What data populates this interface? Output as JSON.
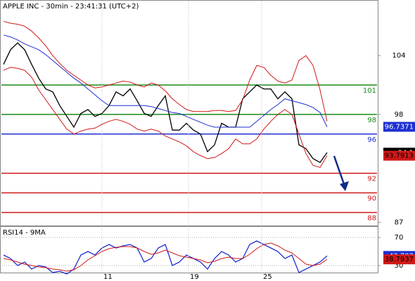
{
  "chart_data": [
    {
      "type": "line",
      "title": "APPLE INC - 30min - 23:41:31 (UTC+2)",
      "x": [
        0,
        1,
        2,
        3,
        4,
        5,
        6,
        7,
        8,
        9,
        10,
        11,
        12,
        13,
        14,
        15,
        16,
        17,
        18,
        19,
        20,
        21,
        22,
        23,
        24,
        25,
        26,
        27,
        28,
        29,
        30,
        31,
        32,
        33,
        34,
        35,
        36,
        37,
        38,
        39,
        40,
        41,
        42,
        43,
        44,
        45,
        46
      ],
      "xlim": [
        -0.5,
        53.2
      ],
      "ylim": [
        86.6,
        109.6
      ],
      "yticks": [
        104,
        98,
        87
      ],
      "series": [
        {
          "color": "#000000",
          "values": [
            103.1,
            104.6,
            105.3,
            104.6,
            103.1,
            101.7,
            100.6,
            100.3,
            98.9,
            97.8,
            96.7,
            98.1,
            98.5,
            97.8,
            98.1,
            98.9,
            100.3,
            99.9,
            100.6,
            99.4,
            98.1,
            97.8,
            98.9,
            99.9,
            96.4,
            96.4,
            97.1,
            96.4,
            96.0,
            94.2,
            94.9,
            97.1,
            96.7,
            96.7,
            99.6,
            100.3,
            101.0,
            100.6,
            100.6,
            99.6,
            100.3,
            99.6,
            94.9,
            94.5,
            93.5,
            93.1,
            94.1
          ]
        },
        {
          "color": "#1f2fd0",
          "values": [
            106.1,
            105.9,
            105.6,
            105.2,
            104.9,
            104.6,
            104.1,
            103.5,
            102.9,
            102.3,
            101.7,
            101.2,
            100.6,
            100.0,
            99.4,
            98.9,
            98.9,
            98.9,
            98.9,
            98.9,
            98.9,
            98.8,
            98.6,
            98.4,
            98.2,
            98.1,
            97.8,
            97.5,
            97.2,
            96.9,
            96.7,
            96.7,
            96.7,
            96.7,
            96.7,
            96.7,
            97.3,
            97.9,
            98.5,
            99.0,
            99.6,
            99.4,
            99.2,
            99.0,
            98.7,
            98.2,
            96.7371
          ]
        },
        {
          "color": "#d01818",
          "values": [
            107.5,
            107.3,
            107.2,
            107.0,
            106.5,
            105.8,
            105.0,
            104.0,
            103.2,
            102.5,
            102.0,
            101.5,
            101.0,
            100.7,
            100.8,
            101.0,
            101.2,
            101.4,
            101.3,
            101.0,
            100.8,
            101.2,
            101.0,
            100.4,
            99.6,
            99.0,
            98.5,
            98.3,
            98.3,
            98.3,
            98.4,
            98.4,
            98.3,
            98.4,
            99.5,
            101.5,
            103.0,
            102.8,
            102.0,
            101.4,
            101.2,
            101.5,
            103.5,
            104.0,
            103.0,
            100.5,
            97.3
          ]
        },
        {
          "color": "#d01818",
          "values": [
            102.5,
            102.8,
            102.7,
            102.5,
            101.8,
            100.5,
            99.5,
            98.5,
            97.5,
            96.5,
            96.0,
            96.3,
            96.5,
            96.6,
            97.0,
            97.3,
            97.5,
            97.3,
            97.0,
            96.5,
            96.3,
            96.5,
            96.3,
            95.8,
            95.5,
            95.2,
            94.8,
            94.2,
            93.8,
            93.5,
            93.6,
            94.0,
            94.5,
            95.5,
            95.0,
            95.0,
            95.5,
            96.5,
            97.3,
            98.0,
            98.5,
            98.0,
            96.0,
            94.0,
            92.8,
            92.6,
            93.7913
          ]
        }
      ],
      "levels": [
        {
          "value": 101,
          "color": "#1a8a1a"
        },
        {
          "value": 98,
          "color": "#1a8a1a"
        },
        {
          "value": 96,
          "color": "#1f2fd0"
        },
        {
          "value": 92,
          "color": "#d01818"
        },
        {
          "value": 90,
          "color": "#d01818"
        },
        {
          "value": 88,
          "color": "#d01818"
        }
      ]
    },
    {
      "type": "line",
      "title": "RSI14 - 9MA",
      "x": [
        0,
        1,
        2,
        3,
        4,
        5,
        6,
        7,
        8,
        9,
        10,
        11,
        12,
        13,
        14,
        15,
        16,
        17,
        18,
        19,
        20,
        21,
        22,
        23,
        24,
        25,
        26,
        27,
        28,
        29,
        30,
        31,
        32,
        33,
        34,
        35,
        36,
        37,
        38,
        39,
        40,
        41,
        42,
        43,
        44,
        45,
        46
      ],
      "xlim": [
        -0.5,
        53.2
      ],
      "ylim": [
        10,
        86
      ],
      "yticks": [
        70,
        30
      ],
      "xticks": [
        {
          "value": 14,
          "label": "11"
        },
        {
          "value": 26.3,
          "label": "19"
        },
        {
          "value": 36.7,
          "label": "25"
        }
      ],
      "series": [
        {
          "color": "#1f2fd0",
          "values": [
            45,
            40,
            30,
            35,
            25,
            30,
            28,
            20,
            22,
            18,
            25,
            45,
            50,
            45,
            55,
            60,
            55,
            58,
            60,
            55,
            35,
            40,
            55,
            60,
            30,
            35,
            45,
            40,
            35,
            25,
            40,
            50,
            45,
            35,
            40,
            60,
            65,
            60,
            55,
            50,
            40,
            45,
            20,
            25,
            30,
            35,
            43.703
          ]
        },
        {
          "color": "#d01818",
          "values": [
            40,
            38,
            35,
            32,
            30,
            28,
            27,
            25,
            24,
            22,
            24,
            30,
            38,
            44,
            50,
            54,
            56,
            57,
            57,
            55,
            50,
            46,
            48,
            52,
            48,
            44,
            42,
            40,
            38,
            34,
            36,
            40,
            42,
            40,
            40,
            46,
            54,
            60,
            62,
            58,
            52,
            48,
            40,
            32,
            30,
            32,
            38.7937
          ]
        }
      ]
    }
  ]
}
